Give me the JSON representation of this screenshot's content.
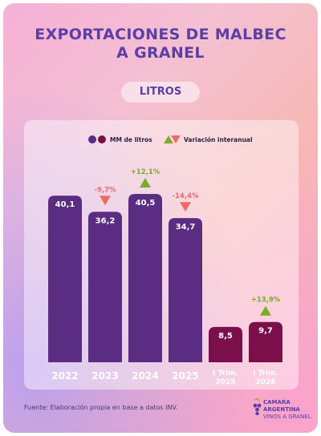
{
  "title_line1": "EXPORTACIONES DE MALBEC",
  "title_line2": "A GRANEL",
  "unit_pill": "LITROS",
  "source": "Fuente: Elaboración propia en base a datos INV.",
  "logo": {
    "line1": "CAMARA",
    "line2": "ARGENTINA",
    "line3": "VINOS A GRANEL"
  },
  "colors": {
    "annual_bar": "#5b2d82",
    "quarter_bar": "#7a0f4c",
    "up": "#7aab2a",
    "down": "#f06a6a"
  },
  "chart_data": {
    "type": "bar",
    "categories": [
      "2022",
      "2023",
      "2024",
      "2025",
      "I Trim. 2025",
      "I Trim. 2026"
    ],
    "values": [
      40.1,
      36.2,
      40.5,
      34.7,
      8.5,
      9.7
    ],
    "value_labels": [
      "40,1",
      "36,2",
      "40,5",
      "34,7",
      "8,5",
      "9,7"
    ],
    "variation_labels": [
      "",
      "-9,7%",
      "+12,1%",
      "-14,4%",
      "",
      "+13,9%"
    ],
    "variation_direction": [
      "",
      "down",
      "up",
      "down",
      "",
      "up"
    ],
    "legend": [
      {
        "label": "MM de litros",
        "icon": "two-circles"
      },
      {
        "label": "Variación interanual",
        "icon": "triangles"
      }
    ],
    "ylim": [
      0,
      45
    ]
  }
}
